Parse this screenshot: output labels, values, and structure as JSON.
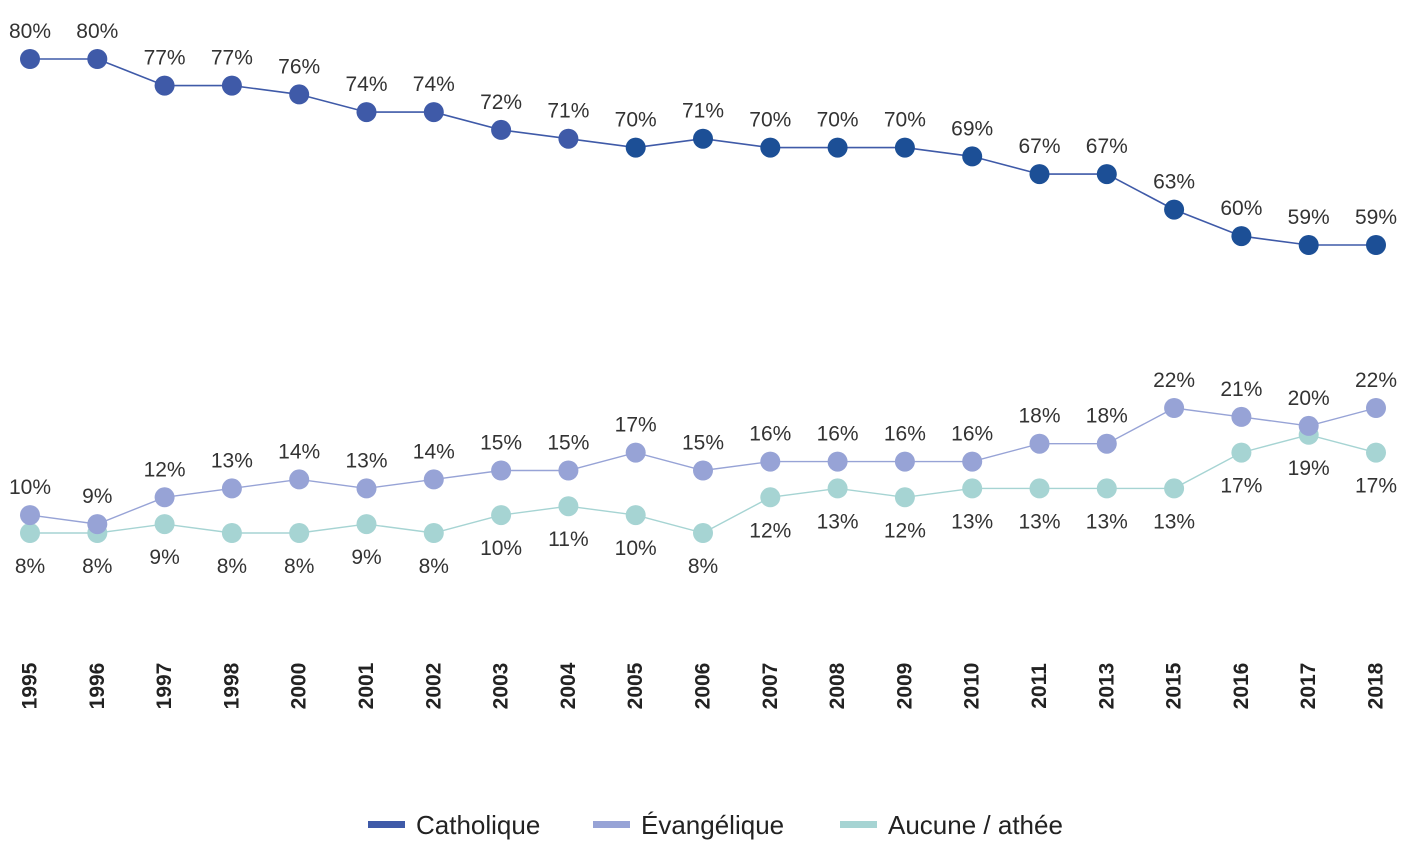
{
  "chart_data": {
    "type": "line",
    "title": "",
    "xlabel": "",
    "ylabel": "",
    "ylim": [
      0,
      100
    ],
    "grid": false,
    "legend_position": "bottom",
    "categories": [
      "1995",
      "1996",
      "1997",
      "1998",
      "2000",
      "2001",
      "2002",
      "2003",
      "2004",
      "2005",
      "2006",
      "2007",
      "2008",
      "2009",
      "2010",
      "2011",
      "2013",
      "2015",
      "2016",
      "2017",
      "2018"
    ],
    "series": [
      {
        "name": "Catholique",
        "color": "#3f5aa8",
        "values": [
          80,
          80,
          77,
          77,
          76,
          74,
          74,
          72,
          71,
          70,
          71,
          70,
          70,
          70,
          69,
          67,
          67,
          63,
          60,
          59,
          59
        ],
        "labels": [
          "80%",
          "80%",
          "77%",
          "77%",
          "76%",
          "74%",
          "74%",
          "72%",
          "71%",
          "70%",
          "71%",
          "70%",
          "70%",
          "70%",
          "69%",
          "67%",
          "67%",
          "63%",
          "60%",
          "59%",
          "59%"
        ]
      },
      {
        "name": "Évangélique",
        "color": "#97a3d6",
        "values": [
          10,
          9,
          12,
          13,
          14,
          13,
          14,
          15,
          15,
          17,
          15,
          16,
          16,
          16,
          16,
          18,
          18,
          22,
          21,
          20,
          22
        ],
        "labels": [
          "10%",
          "9%",
          "12%",
          "13%",
          "14%",
          "13%",
          "14%",
          "15%",
          "15%",
          "17%",
          "15%",
          "16%",
          "16%",
          "16%",
          "16%",
          "18%",
          "18%",
          "22%",
          "21%",
          "20%",
          "22%"
        ]
      },
      {
        "name": "Aucune / athée",
        "color": "#a6d4d3",
        "values": [
          8,
          8,
          9,
          8,
          8,
          9,
          8,
          10,
          11,
          10,
          8,
          12,
          13,
          12,
          13,
          13,
          13,
          13,
          17,
          19,
          17
        ],
        "labels": [
          "8%",
          "8%",
          "9%",
          "8%",
          "8%",
          "9%",
          "8%",
          "10%",
          "11%",
          "10%",
          "8%",
          "12%",
          "13%",
          "12%",
          "13%",
          "13%",
          "13%",
          "13%",
          "17%",
          "19%",
          "17%"
        ]
      }
    ]
  }
}
